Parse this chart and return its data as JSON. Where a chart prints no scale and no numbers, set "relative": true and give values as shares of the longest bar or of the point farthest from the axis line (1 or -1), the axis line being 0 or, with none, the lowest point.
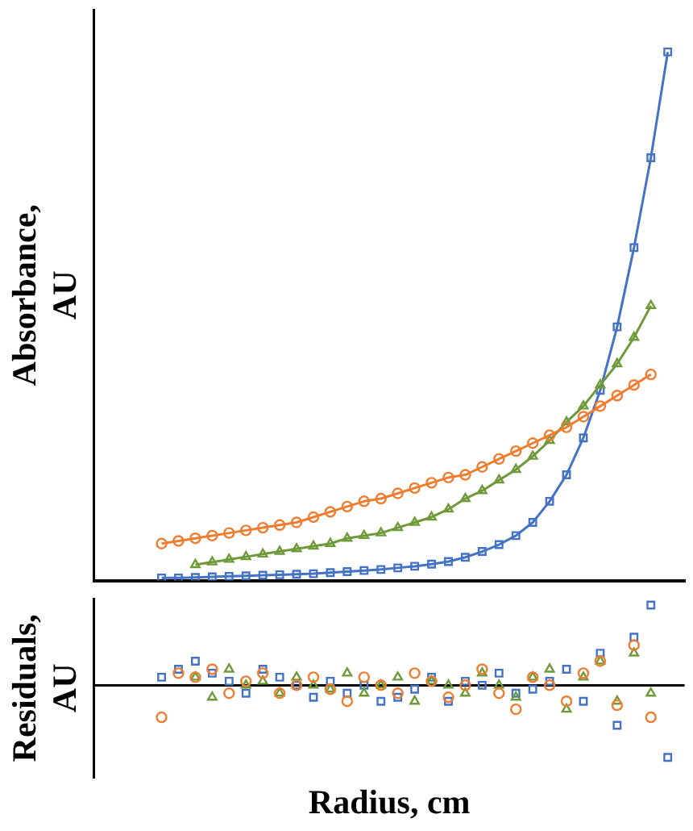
{
  "chart_data": [
    {
      "type": "line",
      "ylabel": "Absorbance, AU",
      "relative": true,
      "legend": false,
      "grid": false,
      "tick_labels": false,
      "categories": [
        null,
        null,
        null,
        null,
        null,
        null,
        null,
        null,
        null,
        null,
        null,
        null,
        null,
        null,
        null,
        null,
        null,
        null,
        null,
        null,
        null,
        null,
        null,
        null,
        null,
        null,
        null,
        null,
        null,
        null,
        null,
        null,
        null,
        null,
        null,
        null
      ],
      "series": [
        {
          "color": "#ed7d31",
          "marker": "circle",
          "values": [
            null,
            null,
            null,
            null,
            0.07,
            0.075,
            0.08,
            0.085,
            0.09,
            0.095,
            0.1,
            0.105,
            0.11,
            0.12,
            0.13,
            0.14,
            0.15,
            0.155,
            0.165,
            0.175,
            0.185,
            0.195,
            0.2,
            0.215,
            0.23,
            0.245,
            0.26,
            0.275,
            0.29,
            0.31,
            0.33,
            0.35,
            0.37,
            0.39,
            null,
            null
          ]
        },
        {
          "color": "#6e9a3a",
          "marker": "triangle",
          "values": [
            null,
            null,
            null,
            null,
            null,
            null,
            0.03,
            0.035,
            0.04,
            0.045,
            0.05,
            0.055,
            0.06,
            0.065,
            0.07,
            0.08,
            0.085,
            0.09,
            0.1,
            0.11,
            0.12,
            0.135,
            0.155,
            0.17,
            0.19,
            0.21,
            0.235,
            0.265,
            0.3,
            0.33,
            0.37,
            0.41,
            0.46,
            0.52,
            null,
            null
          ]
        },
        {
          "color": "#4472c4",
          "marker": "square",
          "values": [
            null,
            null,
            null,
            null,
            0.005,
            0.005,
            0.006,
            0.007,
            0.008,
            0.009,
            0.01,
            0.011,
            0.012,
            0.013,
            0.015,
            0.017,
            0.019,
            0.021,
            0.024,
            0.027,
            0.031,
            0.036,
            0.044,
            0.055,
            0.068,
            0.085,
            0.11,
            0.15,
            0.2,
            0.27,
            0.36,
            0.48,
            0.63,
            0.8,
            1,
            null
          ]
        }
      ]
    },
    {
      "type": "scatter",
      "ylabel": "Residuals, AU",
      "xlabel": "Radius, cm",
      "relative": true,
      "legend": false,
      "grid": false,
      "tick_labels": false,
      "categories": [
        null,
        null,
        null,
        null,
        null,
        null,
        null,
        null,
        null,
        null,
        null,
        null,
        null,
        null,
        null,
        null,
        null,
        null,
        null,
        null,
        null,
        null,
        null,
        null,
        null,
        null,
        null,
        null,
        null,
        null,
        null,
        null,
        null,
        null,
        null,
        null
      ],
      "series": [
        {
          "color": "#ed7d31",
          "marker": "circle",
          "values": [
            null,
            null,
            null,
            null,
            -0.4,
            0.15,
            0.1,
            0.2,
            -0.1,
            0.05,
            0.15,
            -0.1,
            0,
            0.1,
            -0.05,
            -0.2,
            0.1,
            0,
            -0.1,
            0.15,
            0.05,
            -0.15,
            0,
            0.2,
            -0.1,
            -0.3,
            0.1,
            0,
            -0.2,
            0.15,
            0.3,
            -0.25,
            0.5,
            -0.4,
            null,
            null
          ]
        },
        {
          "color": "#6e9a3a",
          "marker": "triangle",
          "values": [
            null,
            null,
            null,
            null,
            null,
            null,
            0.1,
            -0.15,
            0.2,
            0,
            0.05,
            -0.1,
            0.1,
            0,
            -0.05,
            0.15,
            -0.1,
            0,
            0.1,
            -0.2,
            0.05,
            0,
            -0.1,
            0.15,
            0,
            -0.15,
            0.1,
            0.2,
            -0.3,
            0.1,
            0.3,
            -0.2,
            0.4,
            -0.1,
            null,
            null
          ]
        },
        {
          "color": "#4472c4",
          "marker": "square",
          "values": [
            null,
            null,
            null,
            null,
            0.1,
            0.2,
            0.3,
            0.15,
            0.05,
            -0.1,
            0.2,
            0.1,
            0,
            -0.15,
            0.05,
            -0.1,
            0,
            -0.2,
            -0.15,
            -0.05,
            0.1,
            -0.2,
            0.05,
            0,
            0.15,
            -0.1,
            -0.05,
            0.05,
            0.2,
            -0.2,
            0.4,
            -0.5,
            0.6,
            1,
            -0.9,
            null
          ]
        }
      ]
    }
  ]
}
